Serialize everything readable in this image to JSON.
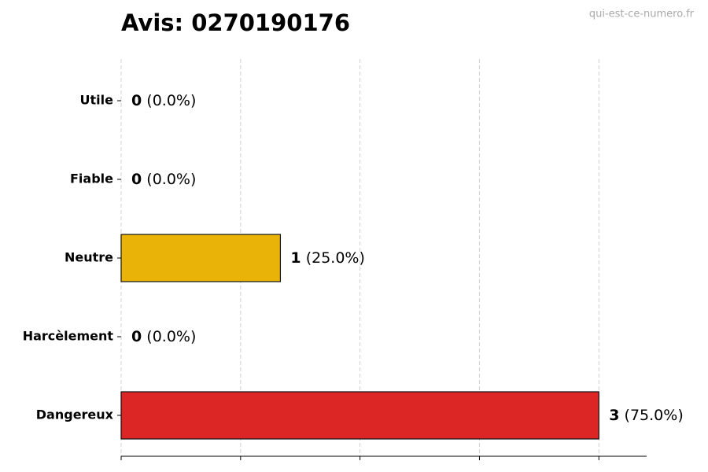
{
  "chart_data": {
    "type": "barh",
    "title": "Avis: 0270190176",
    "source": "qui-est-ce-numero.fr",
    "categories": [
      "Utile",
      "Fiable",
      "Neutre",
      "Harcèlement",
      "Dangereux"
    ],
    "values": [
      0,
      0,
      1,
      0,
      3
    ],
    "percent_labels": [
      "(0.0%)",
      "(0.0%)",
      "(25.0%)",
      "(0.0%)",
      "(75.0%)"
    ],
    "colors": [
      "#2e9e44",
      "#3b7dd8",
      "#eab308",
      "#8e44ad",
      "#dc2626"
    ],
    "xlim": [
      0,
      3.3
    ],
    "xticks": [
      0,
      0.75,
      1.5,
      2.25,
      3
    ],
    "grid": true
  }
}
